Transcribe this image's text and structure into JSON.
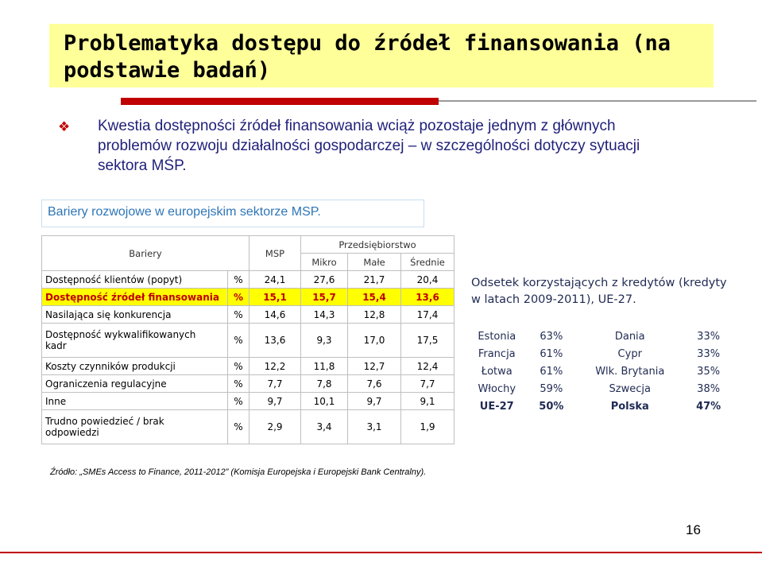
{
  "slide": {
    "title": "Problematyka dostępu do źródeł finansowania (na podstawie badań)",
    "bullet_icon": "diamond-bullet-icon",
    "lead_text": "Kwestia dostępności źródeł finansowania wciąż pozostaje jednym z głównych problemów rozwoju działalności gospodarczej – w szczególności dotyczy sytuacji sektora MŚP.",
    "subheading": "Bariery rozwojowe w europejskim sektorze MSP.",
    "page_number": "16",
    "source": "Źródło: „SMEs Access to Finance, 2011-2012” (Komisja Europejska i Europejski Bank Centralny).",
    "colors": {
      "title_band": "#ffff99",
      "accent_red": "#c00000",
      "lead_blue": "#1f1f7a",
      "subhead_blue": "#2e75b6",
      "highlight": "#ffff00"
    }
  },
  "barriers_table": {
    "header": {
      "bariery": "Bariery",
      "msp": "MSP",
      "przedsiebiorstwo": "Przedsiębiorstwo",
      "mikro": "Mikro",
      "male": "Małe",
      "srednie": "Średnie"
    },
    "rows": [
      {
        "label": "Dostępność klientów (popyt)",
        "unit": "%",
        "msp": "24,1",
        "mikro": "27,6",
        "male": "21,7",
        "srednie": "20,4"
      },
      {
        "label": "Dostępność źródeł finansowania",
        "unit": "%",
        "msp": "15,1",
        "mikro": "15,7",
        "male": "15,4",
        "srednie": "13,6"
      },
      {
        "label": "Nasilająca się konkurencja",
        "unit": "%",
        "msp": "14,6",
        "mikro": "14,3",
        "male": "12,8",
        "srednie": "17,4"
      },
      {
        "label_line1": "Dostępność wykwalifikowanych",
        "label_line2": "kadr",
        "unit": "%",
        "msp": "13,6",
        "mikro": "9,3",
        "male": "17,0",
        "srednie": "17,5"
      },
      {
        "label": "Koszty czynników produkcji",
        "unit": "%",
        "msp": "12,2",
        "mikro": "11,8",
        "male": "12,7",
        "srednie": "12,4"
      },
      {
        "label": "Ograniczenia regulacyjne",
        "unit": "%",
        "msp": "7,7",
        "mikro": "7,8",
        "male": "7,6",
        "srednie": "7,7"
      },
      {
        "label": "Inne",
        "unit": "%",
        "msp": "9,7",
        "mikro": "10,1",
        "male": "9,7",
        "srednie": "9,1"
      },
      {
        "label_line1": "Trudno powiedzieć / brak",
        "label_line2": "odpowiedzi",
        "unit": "%",
        "msp": "2,9",
        "mikro": "3,4",
        "male": "3,1",
        "srednie": "1,9"
      }
    ]
  },
  "credit_rates": {
    "title": "Odsetek korzystających z kredytów (kredyty w latach 2009-2011), UE-27.",
    "rows": [
      {
        "c1": "Estonia",
        "v1": "63%",
        "c2": "Dania",
        "v2": "33%"
      },
      {
        "c1": "Francja",
        "v1": "61%",
        "c2": "Cypr",
        "v2": "33%"
      },
      {
        "c1": "Łotwa",
        "v1": "61%",
        "c2": "Wlk. Brytania",
        "v2": "35%"
      },
      {
        "c1": "Włochy",
        "v1": "59%",
        "c2": "Szwecja",
        "v2": "38%"
      },
      {
        "c1": "UE-27",
        "v1": "50%",
        "c2": "Polska",
        "v2": "47%"
      }
    ]
  }
}
